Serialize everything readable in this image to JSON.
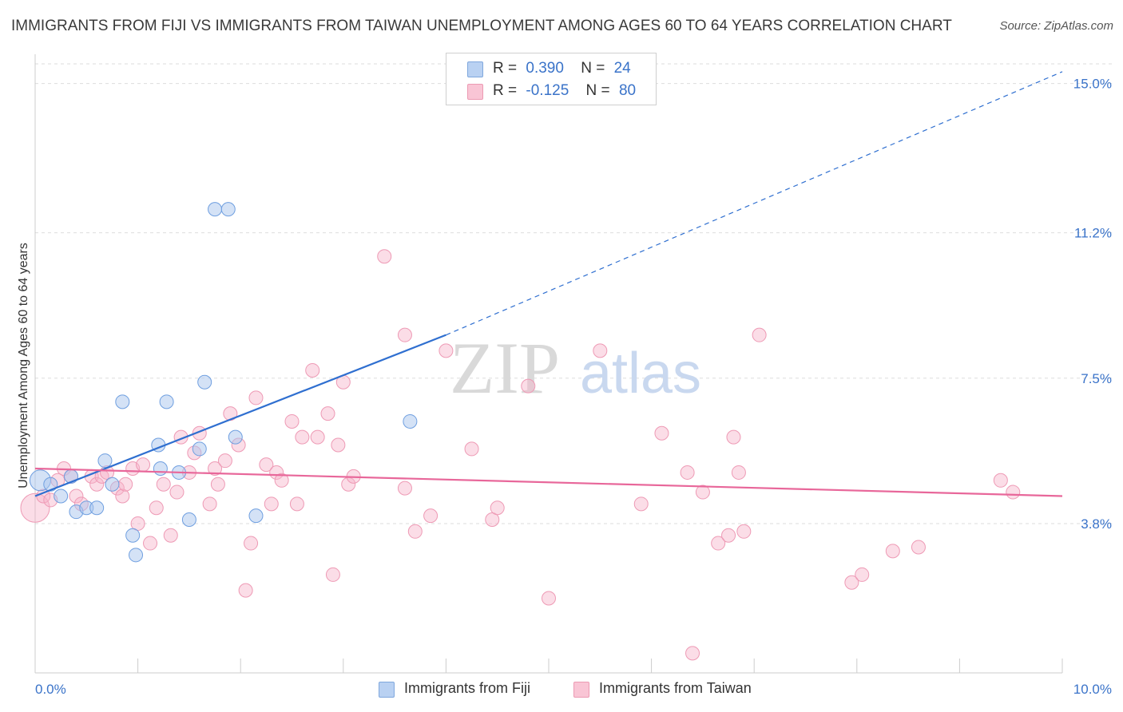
{
  "title": "IMMIGRANTS FROM FIJI VS IMMIGRANTS FROM TAIWAN UNEMPLOYMENT AMONG AGES 60 TO 64 YEARS CORRELATION CHART",
  "source": "Source: ZipAtlas.com",
  "watermark": {
    "zip": "ZIP",
    "atlas": "atlas"
  },
  "legend": {
    "r_label": "R =",
    "n_label": "N =",
    "fiji": {
      "r": "0.390",
      "n": "24"
    },
    "taiwan": {
      "r": "-0.125",
      "n": "80"
    }
  },
  "colors": {
    "fiji": "#6f9fe0",
    "taiwan": "#f08aaa",
    "fiji_line": "#2f6fd0",
    "taiwan_line": "#e8679a",
    "tick_label": "#3a73c9"
  },
  "chart_data": {
    "type": "scatter",
    "title": "IMMIGRANTS FROM FIJI VS IMMIGRANTS FROM TAIWAN UNEMPLOYMENT AMONG AGES 60 TO 64 YEARS CORRELATION CHART",
    "xlabel": "",
    "ylabel": "Unemployment Among Ages 60 to 64 years",
    "xlim": [
      0,
      10
    ],
    "ylim": [
      0,
      15.5
    ],
    "x_tick_labels": [
      "0.0%",
      "10.0%"
    ],
    "y_ticks": [
      3.8,
      7.5,
      11.2,
      15.0
    ],
    "y_tick_labels": [
      "3.8%",
      "7.5%",
      "11.2%",
      "15.0%"
    ],
    "grid": true,
    "legend_position": "bottom-center",
    "series": [
      {
        "name": "Immigrants from Fiji",
        "points": [
          [
            0.05,
            4.9
          ],
          [
            0.15,
            4.8
          ],
          [
            0.25,
            4.5
          ],
          [
            0.35,
            5.0
          ],
          [
            0.4,
            4.1
          ],
          [
            0.5,
            4.2
          ],
          [
            0.6,
            4.2
          ],
          [
            0.68,
            5.4
          ],
          [
            0.75,
            4.8
          ],
          [
            0.85,
            6.9
          ],
          [
            0.95,
            3.5
          ],
          [
            0.98,
            3.0
          ],
          [
            1.2,
            5.8
          ],
          [
            1.22,
            5.2
          ],
          [
            1.28,
            6.9
          ],
          [
            1.4,
            5.1
          ],
          [
            1.5,
            3.9
          ],
          [
            1.6,
            5.7
          ],
          [
            1.65,
            7.4
          ],
          [
            1.75,
            11.8
          ],
          [
            1.88,
            11.8
          ],
          [
            1.95,
            6.0
          ],
          [
            2.15,
            4.0
          ],
          [
            3.65,
            6.4
          ]
        ],
        "trend": {
          "x": [
            0.0,
            4.0
          ],
          "y": [
            4.5,
            8.6
          ],
          "dashed_extension_to": [
            10.0,
            15.3
          ]
        }
      },
      {
        "name": "Immigrants from Taiwan",
        "points": [
          [
            0.0,
            4.2
          ],
          [
            0.08,
            4.5
          ],
          [
            0.15,
            4.4
          ],
          [
            0.22,
            4.9
          ],
          [
            0.28,
            5.2
          ],
          [
            0.35,
            5.0
          ],
          [
            0.4,
            4.5
          ],
          [
            0.45,
            4.3
          ],
          [
            0.55,
            5.0
          ],
          [
            0.6,
            4.8
          ],
          [
            0.65,
            5.0
          ],
          [
            0.7,
            5.1
          ],
          [
            0.8,
            4.7
          ],
          [
            0.85,
            4.5
          ],
          [
            0.88,
            4.8
          ],
          [
            0.95,
            5.2
          ],
          [
            1.0,
            3.8
          ],
          [
            1.05,
            5.3
          ],
          [
            1.12,
            3.3
          ],
          [
            1.18,
            4.2
          ],
          [
            1.25,
            4.8
          ],
          [
            1.32,
            3.5
          ],
          [
            1.38,
            4.6
          ],
          [
            1.42,
            6.0
          ],
          [
            1.5,
            5.1
          ],
          [
            1.55,
            5.6
          ],
          [
            1.6,
            6.1
          ],
          [
            1.7,
            4.3
          ],
          [
            1.75,
            5.2
          ],
          [
            1.78,
            4.8
          ],
          [
            1.85,
            5.4
          ],
          [
            1.9,
            6.6
          ],
          [
            1.98,
            5.8
          ],
          [
            2.05,
            2.1
          ],
          [
            2.1,
            3.3
          ],
          [
            2.15,
            7.0
          ],
          [
            2.25,
            5.3
          ],
          [
            2.3,
            4.3
          ],
          [
            2.35,
            5.1
          ],
          [
            2.4,
            4.9
          ],
          [
            2.5,
            6.4
          ],
          [
            2.55,
            4.3
          ],
          [
            2.6,
            6.0
          ],
          [
            2.7,
            7.7
          ],
          [
            2.75,
            6.0
          ],
          [
            2.85,
            6.6
          ],
          [
            2.9,
            2.5
          ],
          [
            2.95,
            5.8
          ],
          [
            3.0,
            7.4
          ],
          [
            3.05,
            4.8
          ],
          [
            3.1,
            5.0
          ],
          [
            3.6,
            8.6
          ],
          [
            3.4,
            10.6
          ],
          [
            3.6,
            4.7
          ],
          [
            3.7,
            3.6
          ],
          [
            3.85,
            4.0
          ],
          [
            4.0,
            8.2
          ],
          [
            4.25,
            5.7
          ],
          [
            4.45,
            3.9
          ],
          [
            4.5,
            4.2
          ],
          [
            4.8,
            7.3
          ],
          [
            5.0,
            1.9
          ],
          [
            5.5,
            8.2
          ],
          [
            5.9,
            4.3
          ],
          [
            6.1,
            6.1
          ],
          [
            6.35,
            5.1
          ],
          [
            6.4,
            0.5
          ],
          [
            6.5,
            4.6
          ],
          [
            6.65,
            3.3
          ],
          [
            6.75,
            3.5
          ],
          [
            6.8,
            6.0
          ],
          [
            6.85,
            5.1
          ],
          [
            6.9,
            3.6
          ],
          [
            7.05,
            8.6
          ],
          [
            7.95,
            2.3
          ],
          [
            8.05,
            2.5
          ],
          [
            8.35,
            3.1
          ],
          [
            8.6,
            3.2
          ],
          [
            9.4,
            4.9
          ],
          [
            9.52,
            4.6
          ]
        ],
        "trend": {
          "x": [
            0.0,
            10.0
          ],
          "y": [
            5.2,
            4.5
          ]
        }
      }
    ]
  }
}
